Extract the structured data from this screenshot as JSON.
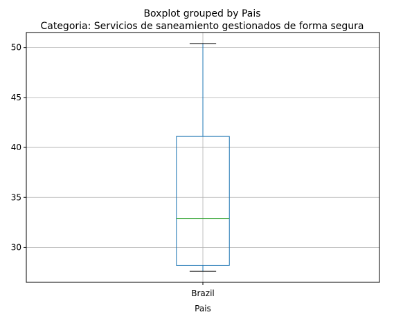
{
  "chart_data": {
    "type": "boxplot",
    "suptitle": "Boxplot grouped by Pais",
    "title": "Categoria: Servicios de saneamiento gestionados de forma segura",
    "xlabel": "Pais",
    "ylabel": "",
    "ylim": [
      26.5,
      51.5
    ],
    "yticks": [
      30,
      35,
      40,
      45,
      50
    ],
    "grid": true,
    "categories": [
      "Brazil"
    ],
    "boxes": [
      {
        "category": "Brazil",
        "whisker_low": 27.6,
        "q1": 28.2,
        "median": 32.9,
        "q3": 41.1,
        "whisker_high": 50.4
      }
    ],
    "colors": {
      "box": "#1f77b4",
      "median": "#2ca02c",
      "grid": "#b0b0b0"
    }
  }
}
